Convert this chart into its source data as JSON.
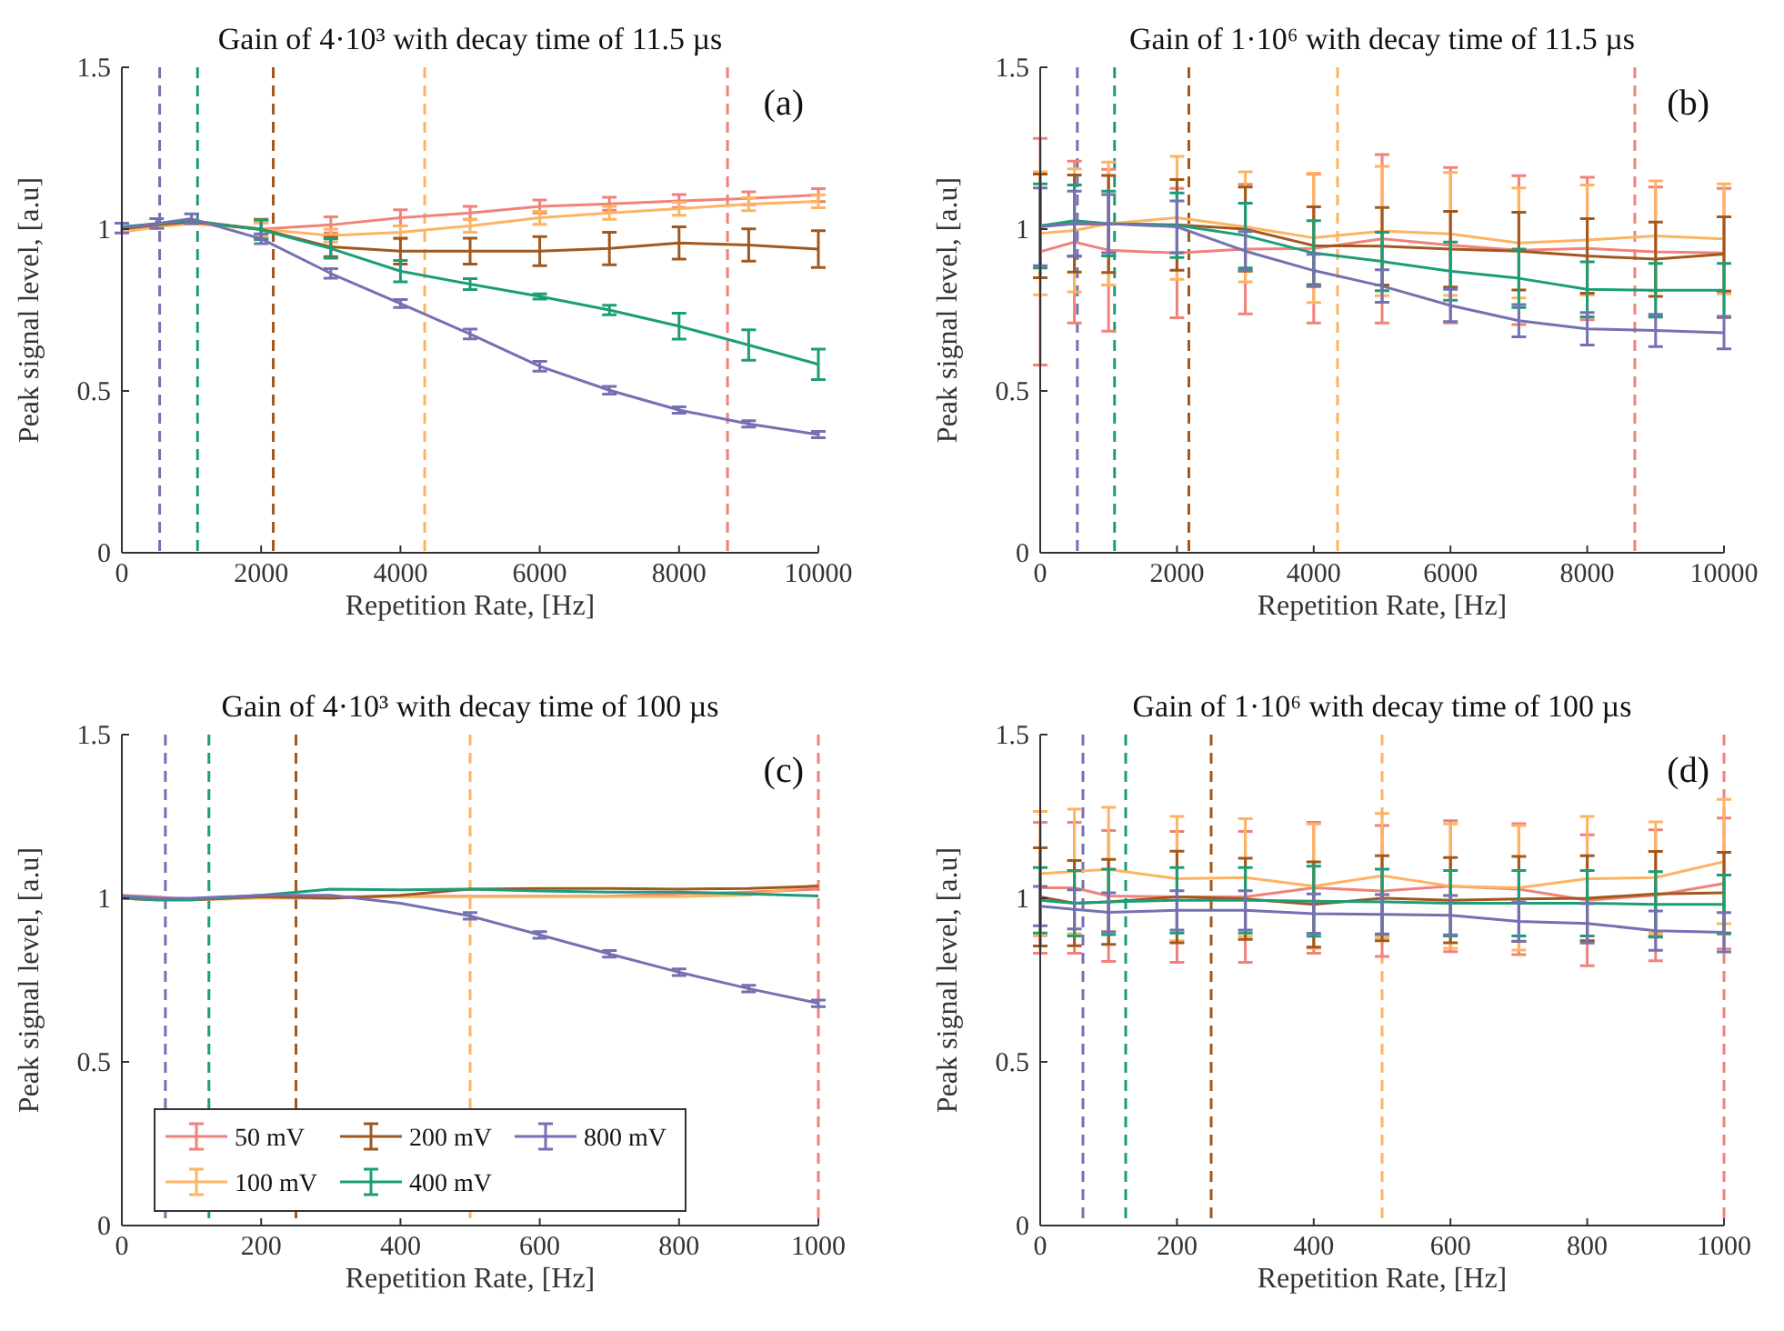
{
  "chart_data": [
    {
      "type": "line",
      "title": "Gain of 4·10³ with decay time of 11.5 µs",
      "xlabel": "Repetition Rate, [Hz]",
      "ylabel": "Peak signal level, [a.u]",
      "annotations": [
        "(a)"
      ],
      "x": [
        0,
        500,
        1000,
        2000,
        3000,
        4000,
        5000,
        6000,
        7000,
        8000,
        9000,
        10000
      ],
      "xlim": [
        0,
        10000
      ],
      "xticks": [
        0,
        2000,
        4000,
        6000,
        8000,
        10000
      ],
      "ylim": [
        0,
        1.5
      ],
      "yticks": [
        0,
        0.5,
        1,
        1.5
      ],
      "grid": false,
      "legend": false,
      "line_style": "solid",
      "series": [
        {
          "color": "#f0827a",
          "values": [
            1.0,
            1.017,
            1.026,
            1.0,
            1.013,
            1.035,
            1.05,
            1.07,
            1.078,
            1.087,
            1.095,
            1.105
          ],
          "errors": [
            null,
            null,
            null,
            0.02,
            0.025,
            0.025,
            0.02,
            0.02,
            0.02,
            0.02,
            0.02,
            0.02
          ]
        },
        {
          "color": "#fdb462",
          "values": [
            0.99,
            1.007,
            1.017,
            1.0,
            0.98,
            0.99,
            1.01,
            1.035,
            1.05,
            1.063,
            1.077,
            1.086
          ],
          "errors": [
            null,
            null,
            null,
            0.02,
            0.02,
            0.02,
            0.02,
            0.02,
            0.02,
            0.02,
            0.02,
            0.02
          ]
        },
        {
          "color": "#a0581e",
          "values": [
            1.0,
            1.013,
            1.022,
            1.0,
            0.945,
            0.932,
            0.932,
            0.932,
            0.94,
            0.957,
            0.951,
            0.938
          ],
          "errors": [
            null,
            null,
            null,
            0.03,
            0.03,
            0.04,
            0.04,
            0.045,
            0.05,
            0.05,
            0.05,
            0.057
          ]
        },
        {
          "color": "#1b9e77",
          "values": [
            1.007,
            1.017,
            1.026,
            0.998,
            0.94,
            0.87,
            0.83,
            0.792,
            0.75,
            0.7,
            0.642,
            0.582
          ],
          "errors": [
            null,
            null,
            null,
            0.03,
            0.03,
            0.033,
            0.017,
            0.008,
            0.015,
            0.04,
            0.047,
            0.047
          ]
        },
        {
          "color": "#7570b3",
          "values": [
            1.003,
            1.017,
            1.032,
            0.97,
            0.863,
            0.77,
            0.676,
            0.576,
            0.502,
            0.441,
            0.398,
            0.365
          ],
          "errors": [
            0.015,
            0.015,
            0.015,
            0.015,
            0.015,
            0.012,
            0.015,
            0.015,
            0.012,
            0.01,
            0.01,
            0.01
          ]
        }
      ],
      "ref_lines": [
        {
          "axis": "x",
          "value": 543,
          "color": "#7570b3",
          "line_style": "dashed"
        },
        {
          "axis": "x",
          "value": 1087,
          "color": "#1b9e77",
          "line_style": "dashed"
        },
        {
          "axis": "x",
          "value": 2174,
          "color": "#a0581e",
          "line_style": "dashed"
        },
        {
          "axis": "x",
          "value": 4348,
          "color": "#fdb462",
          "line_style": "dashed"
        },
        {
          "axis": "x",
          "value": 8696,
          "color": "#f0827a",
          "line_style": "dashed"
        }
      ]
    },
    {
      "type": "line",
      "title": "Gain of 1·10⁶ with decay time of 11.5 µs",
      "xlabel": "Repetition Rate, [Hz]",
      "ylabel": "Peak signal level, [a.u]",
      "annotations": [
        "(b)"
      ],
      "x": [
        0,
        500,
        1000,
        2000,
        3000,
        4000,
        5000,
        6000,
        7000,
        8000,
        9000,
        10000
      ],
      "xlim": [
        0,
        10000
      ],
      "xticks": [
        0,
        2000,
        4000,
        6000,
        8000,
        10000
      ],
      "ylim": [
        0,
        1.5
      ],
      "yticks": [
        0,
        0.5,
        1,
        1.5
      ],
      "grid": false,
      "legend": false,
      "line_style": "solid",
      "series": [
        {
          "color": "#f0827a",
          "values": [
            0.93,
            0.96,
            0.935,
            0.926,
            0.938,
            0.94,
            0.97,
            0.95,
            0.935,
            0.94,
            0.93,
            0.926
          ],
          "errors": [
            0.35,
            0.25,
            0.25,
            0.2,
            0.2,
            0.23,
            0.26,
            0.24,
            0.23,
            0.22,
            0.2,
            0.2
          ]
        },
        {
          "color": "#fdb462",
          "values": [
            0.987,
            0.996,
            1.017,
            1.035,
            1.007,
            0.973,
            0.994,
            0.985,
            0.957,
            0.966,
            0.979,
            0.97
          ],
          "errors": [
            0.19,
            0.19,
            0.19,
            0.19,
            0.17,
            0.2,
            0.2,
            0.19,
            0.17,
            0.17,
            0.17,
            0.17
          ]
        },
        {
          "color": "#a0581e",
          "values": [
            1.01,
            1.017,
            1.016,
            1.013,
            1.0,
            0.949,
            0.947,
            0.938,
            0.932,
            0.917,
            0.907,
            0.923
          ],
          "errors": [
            0.16,
            0.15,
            0.15,
            0.14,
            0.13,
            0.12,
            0.12,
            0.117,
            0.12,
            0.115,
            0.115,
            0.115
          ]
        },
        {
          "color": "#1b9e77",
          "values": [
            1.01,
            1.026,
            1.017,
            1.012,
            0.98,
            0.926,
            0.9,
            0.87,
            0.848,
            0.814,
            0.811,
            0.811
          ],
          "errors": [
            0.13,
            0.11,
            0.1,
            0.1,
            0.1,
            0.1,
            0.09,
            0.09,
            0.09,
            0.085,
            0.083,
            0.083
          ]
        },
        {
          "color": "#7570b3",
          "values": [
            1.007,
            1.017,
            1.017,
            1.007,
            0.932,
            0.872,
            0.824,
            0.764,
            0.717,
            0.692,
            0.687,
            0.68
          ],
          "errors": [
            0.12,
            0.1,
            0.09,
            0.08,
            0.06,
            0.05,
            0.05,
            0.05,
            0.05,
            0.05,
            0.05,
            0.05
          ]
        }
      ],
      "ref_lines": [
        {
          "axis": "x",
          "value": 543,
          "color": "#7570b3",
          "line_style": "dashed"
        },
        {
          "axis": "x",
          "value": 1087,
          "color": "#1b9e77",
          "line_style": "dashed"
        },
        {
          "axis": "x",
          "value": 2174,
          "color": "#a0581e",
          "line_style": "dashed"
        },
        {
          "axis": "x",
          "value": 4348,
          "color": "#fdb462",
          "line_style": "dashed"
        },
        {
          "axis": "x",
          "value": 8696,
          "color": "#f0827a",
          "line_style": "dashed"
        }
      ]
    },
    {
      "type": "line",
      "title": "Gain of 4·10³ with decay time of 100 µs",
      "xlabel": "Repetition Rate, [Hz]",
      "ylabel": "Peak signal level, [a.u]",
      "annotations": [
        "(c)"
      ],
      "x": [
        0,
        50,
        100,
        200,
        300,
        400,
        500,
        600,
        700,
        800,
        900,
        1000
      ],
      "xlim": [
        0,
        1000
      ],
      "xticks": [
        0,
        200,
        400,
        600,
        800,
        1000
      ],
      "ylim": [
        0,
        1.5
      ],
      "yticks": [
        0,
        0.5,
        1,
        1.5
      ],
      "grid": false,
      "legend": "bottom left",
      "line_style": "solid",
      "series": [
        {
          "name": "50 mV",
          "color": "#f0827a",
          "values": [
            1.009,
            1.004,
            0.996,
            1.009,
            1.004,
            1.006,
            1.006,
            1.006,
            1.006,
            1.013,
            1.019,
            1.028
          ]
        },
        {
          "name": "100 mV",
          "color": "#fdb462",
          "values": [
            1.0,
            0.995,
            0.995,
            1.0,
            1.0,
            1.005,
            1.005,
            1.005,
            1.005,
            1.005,
            1.01,
            1.04
          ]
        },
        {
          "name": "200 mV",
          "color": "#a0581e",
          "values": [
            1.0,
            0.995,
            0.995,
            1.005,
            1.0,
            1.009,
            1.028,
            1.03,
            1.03,
            1.028,
            1.03,
            1.037
          ]
        },
        {
          "name": "400 mV",
          "color": "#1b9e77",
          "values": [
            1.0,
            0.995,
            0.995,
            1.009,
            1.028,
            1.026,
            1.028,
            1.022,
            1.019,
            1.019,
            1.013,
            1.007
          ]
        },
        {
          "name": "800 mV",
          "color": "#7570b3",
          "values": [
            1.007,
            1.0,
            1.0,
            1.009,
            1.009,
            0.985,
            0.946,
            0.888,
            0.83,
            0.774,
            0.724,
            0.679
          ],
          "errors": [
            null,
            null,
            null,
            null,
            null,
            null,
            0.01,
            0.01,
            0.01,
            0.01,
            0.01,
            0.01
          ]
        }
      ],
      "ref_lines": [
        {
          "axis": "x",
          "value": 62.5,
          "color": "#7570b3",
          "line_style": "dashed"
        },
        {
          "axis": "x",
          "value": 125,
          "color": "#1b9e77",
          "line_style": "dashed"
        },
        {
          "axis": "x",
          "value": 250,
          "color": "#a0581e",
          "line_style": "dashed"
        },
        {
          "axis": "x",
          "value": 500,
          "color": "#fdb462",
          "line_style": "dashed"
        },
        {
          "axis": "x",
          "value": 1000,
          "color": "#f0827a",
          "line_style": "dashed"
        }
      ]
    },
    {
      "type": "line",
      "title": "Gain of 1·10⁶ with decay time of 100 µs",
      "xlabel": "Repetition Rate, [Hz]",
      "ylabel": "Peak signal level, [a.u]",
      "annotations": [
        "(d)"
      ],
      "x": [
        0,
        50,
        100,
        200,
        300,
        400,
        500,
        600,
        700,
        800,
        900,
        1000
      ],
      "xlim": [
        0,
        1000
      ],
      "xticks": [
        0,
        200,
        400,
        600,
        800,
        1000
      ],
      "ylim": [
        0,
        1.5
      ],
      "yticks": [
        0,
        0.5,
        1,
        1.5
      ],
      "grid": false,
      "legend": false,
      "line_style": "solid",
      "series": [
        {
          "color": "#f0827a",
          "values": [
            1.032,
            1.032,
            1.007,
            1.004,
            1.004,
            1.032,
            1.022,
            1.037,
            1.028,
            0.994,
            1.009,
            1.045
          ],
          "errors": [
            0.2,
            0.2,
            0.2,
            0.2,
            0.2,
            0.2,
            0.2,
            0.2,
            0.2,
            0.2,
            0.2,
            0.2
          ]
        },
        {
          "color": "#fdb462",
          "values": [
            1.075,
            1.082,
            1.088,
            1.06,
            1.063,
            1.037,
            1.069,
            1.037,
            1.032,
            1.06,
            1.063,
            1.112
          ],
          "errors": [
            0.19,
            0.19,
            0.19,
            0.19,
            0.18,
            0.19,
            0.19,
            0.19,
            0.19,
            0.19,
            0.17,
            0.19
          ]
        },
        {
          "color": "#a0581e",
          "values": [
            1.004,
            0.985,
            0.989,
            1.004,
            0.998,
            0.981,
            1.0,
            0.994,
            0.998,
            1.0,
            1.013,
            1.017
          ],
          "errors": [
            0.15,
            0.13,
            0.13,
            0.14,
            0.124,
            0.13,
            0.13,
            0.13,
            0.13,
            0.13,
            0.13,
            0.123
          ]
        },
        {
          "color": "#1b9e77",
          "values": [
            0.994,
            0.985,
            0.989,
            0.994,
            0.994,
            0.991,
            0.989,
            0.985,
            0.985,
            0.985,
            0.981,
            0.981
          ],
          "errors": [
            0.1,
            0.1,
            0.1,
            0.1,
            0.1,
            0.107,
            0.1,
            0.1,
            0.1,
            0.1,
            0.1,
            0.09
          ]
        },
        {
          "color": "#7570b3",
          "values": [
            0.976,
            0.966,
            0.957,
            0.963,
            0.963,
            0.953,
            0.951,
            0.948,
            0.929,
            0.923,
            0.901,
            0.896
          ],
          "errors": [
            0.06,
            0.06,
            0.06,
            0.06,
            0.06,
            0.06,
            0.06,
            0.06,
            0.06,
            0.06,
            0.06,
            0.06
          ]
        }
      ],
      "ref_lines": [
        {
          "axis": "x",
          "value": 62.5,
          "color": "#7570b3",
          "line_style": "dashed"
        },
        {
          "axis": "x",
          "value": 125,
          "color": "#1b9e77",
          "line_style": "dashed"
        },
        {
          "axis": "x",
          "value": 250,
          "color": "#a0581e",
          "line_style": "dashed"
        },
        {
          "axis": "x",
          "value": 500,
          "color": "#fdb462",
          "line_style": "dashed"
        },
        {
          "axis": "x",
          "value": 1000,
          "color": "#f0827a",
          "line_style": "dashed"
        }
      ]
    }
  ]
}
